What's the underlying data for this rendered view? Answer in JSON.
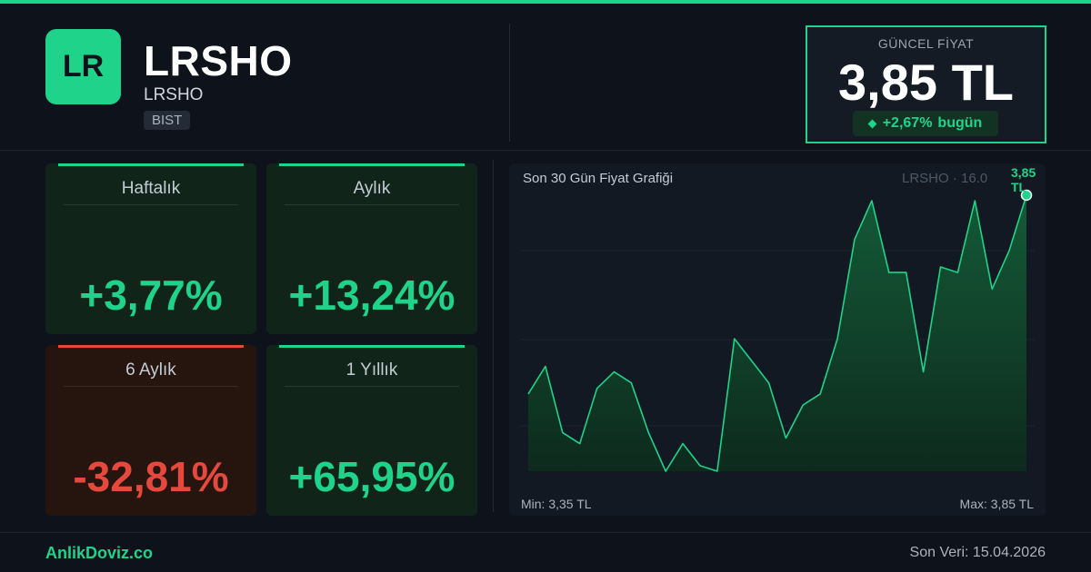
{
  "header": {
    "logo_text": "LR",
    "ticker": "LRSHO",
    "name": "LRSHO",
    "exchange": "BIST"
  },
  "price": {
    "label": "GÜNCEL FİYAT",
    "value": "3,85 TL",
    "change": "+2,67%",
    "change_suffix": "bugün"
  },
  "performance": [
    {
      "label": "Haftalık",
      "value": "+3,77%",
      "trend": "up"
    },
    {
      "label": "Aylık",
      "value": "+13,24%",
      "trend": "up"
    },
    {
      "label": "6 Aylık",
      "value": "-32,81%",
      "trend": "down"
    },
    {
      "label": "1 Yıllık",
      "value": "+65,95%",
      "trend": "up"
    }
  ],
  "chart_data": {
    "type": "area",
    "title": "Son 30 Gün Fiyat Grafiği",
    "subtitle": "LRSHO · 16.0",
    "last_label": "3,85 TL",
    "min_label": "Min: 3,35 TL",
    "max_label": "Max: 3,85 TL",
    "ylim": [
      3.35,
      3.85
    ],
    "grid": true,
    "values": [
      3.49,
      3.54,
      3.42,
      3.4,
      3.5,
      3.53,
      3.51,
      3.42,
      3.35,
      3.4,
      3.36,
      3.35,
      3.59,
      3.55,
      3.51,
      3.41,
      3.47,
      3.49,
      3.59,
      3.77,
      3.84,
      3.71,
      3.71,
      3.53,
      3.72,
      3.71,
      3.84,
      3.68,
      3.75,
      3.85
    ],
    "colors": {
      "line": "#1fd38a",
      "fill_top": "#145a37",
      "fill_bottom": "#0d2a1d"
    }
  },
  "footer": {
    "brand": "AnlikDoviz.co",
    "last_data": "Son Veri: 15.04.2026"
  },
  "colors": {
    "accent": "#1fd38a",
    "negative": "#e5483c",
    "background": "#0e131b"
  }
}
